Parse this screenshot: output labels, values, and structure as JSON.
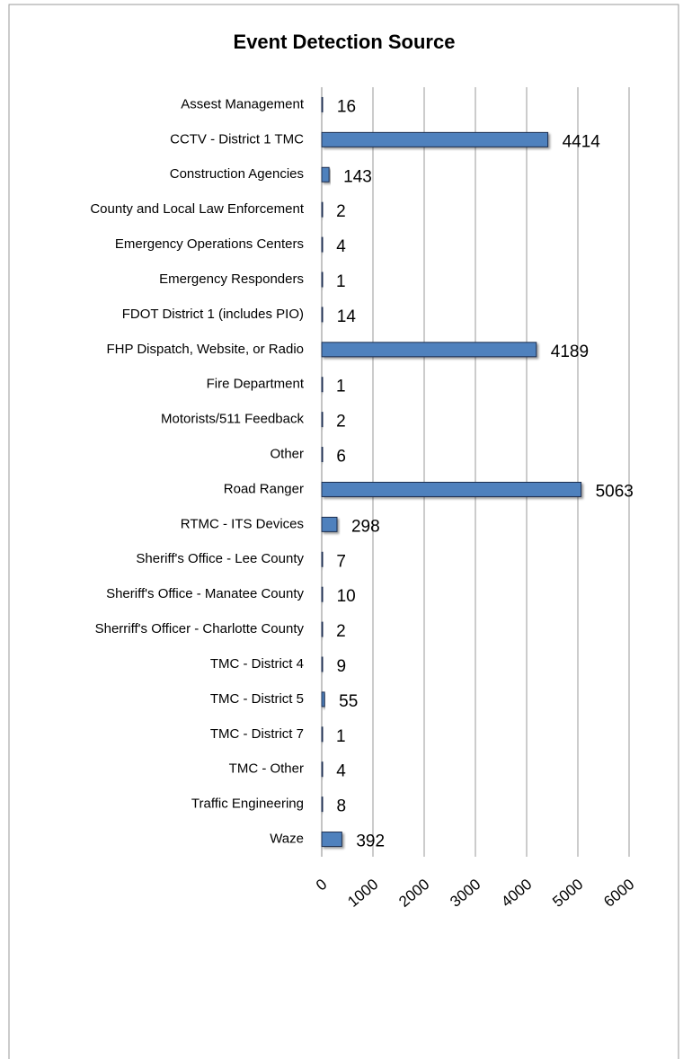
{
  "chart_data": {
    "type": "bar",
    "orientation": "horizontal",
    "title": "Event Detection Source",
    "categories": [
      "Assest Management",
      "CCTV - District 1 TMC",
      "Construction Agencies",
      "County and Local Law Enforcement",
      "Emergency Operations Centers",
      "Emergency Responders",
      "FDOT District 1 (includes PIO)",
      "FHP Dispatch, Website, or Radio",
      "Fire Department",
      "Motorists/511 Feedback",
      "Other",
      "Road Ranger",
      "RTMC - ITS Devices",
      "Sheriff's Office - Lee County",
      "Sheriff's Office - Manatee County",
      "Sherriff's Officer - Charlotte County",
      "TMC - District 4",
      "TMC - District 5",
      "TMC - District 7",
      "TMC - Other",
      "Traffic Engineering",
      "Waze"
    ],
    "values": [
      16,
      4414,
      143,
      2,
      4,
      1,
      14,
      4189,
      1,
      2,
      6,
      5063,
      298,
      7,
      10,
      2,
      9,
      55,
      1,
      4,
      8,
      392
    ],
    "color": "#4f81bd",
    "xlim": [
      0,
      6000
    ],
    "xticks": [
      0,
      1000,
      2000,
      3000,
      4000,
      5000,
      6000
    ],
    "grid": true
  }
}
